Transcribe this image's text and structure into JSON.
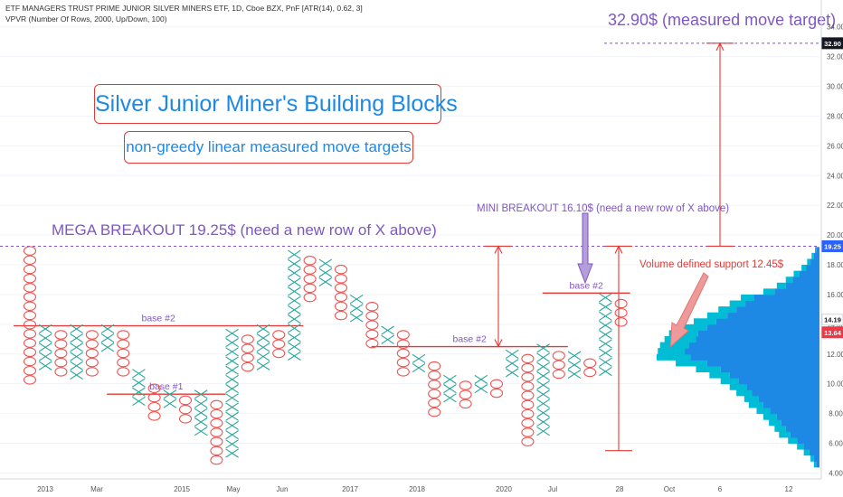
{
  "header": {
    "line1": "ETF MANAGERS TRUST PRIME JUNIOR SILVER MINERS ETF, 1D, Cboe BZX, PnF [ATR(14), 0.62, 3]",
    "line2": "VPVR (Number Of Rows, 2000, Up/Down, 100)"
  },
  "colors": {
    "x_mark": "#26a69a",
    "o_mark": "#ef5350",
    "annotation_line": "#e53935",
    "accent_text": "#1e88e5",
    "purple": "#7e57c2",
    "volume_up": "#00bcd4",
    "volume_down": "#1e88e5",
    "badge_dark": "#131722",
    "badge_blue": "#2962ff",
    "badge_red": "#f23645"
  },
  "annotations": {
    "title": "Silver Junior Miner's Building Blocks",
    "subtitle": "non-greedy linear measured move targets",
    "target_label": "32.90$ (measured move target)",
    "mega_breakout": "MEGA BREAKOUT 19.25$ (need a new row of X above)",
    "mini_breakout": "MINI BREAKOUT 16.10$ (need a new row of X above)",
    "volume_support": "Volume defined support 12.45$",
    "base2_left": "base #2",
    "base1": "base #1",
    "base2_mid": "base #2",
    "base2_right": "base #2"
  },
  "badges": [
    {
      "label": "32.90",
      "value": 32.9,
      "color": "#131722"
    },
    {
      "label": "19.25",
      "value": 19.25,
      "color": "#2962ff"
    },
    {
      "label": "14.19",
      "value": 14.19,
      "color": "#ffffff"
    },
    {
      "label": "13.64",
      "value": 13.64,
      "color": "#f23645"
    }
  ],
  "chart_data": {
    "type": "scatter",
    "subtype": "point-and-figure",
    "title": "",
    "xlabel": "",
    "ylabel": "",
    "ylim": [
      3.6,
      35.2
    ],
    "y_ticks": [
      4,
      6,
      8,
      10,
      12,
      14,
      16,
      18,
      20,
      22,
      24,
      26,
      28,
      30,
      32,
      34
    ],
    "y_tick_labels": [
      "4.00",
      "6.00",
      "8.00",
      "10.00",
      "12.00",
      "14.00",
      "16.00",
      "18.00",
      "20.00",
      "22.00",
      "24.00",
      "26.00",
      "28.00",
      "30.00",
      "32.00",
      "34.00"
    ],
    "x_tick_labels": [
      "2013",
      "Mar",
      "2015",
      "May",
      "Jun",
      "2017",
      "2018",
      "2020",
      "Jul",
      "28",
      "Oct",
      "6",
      "12"
    ],
    "box_size": 0.62,
    "columns": [
      {
        "type": "O",
        "high": 19.25,
        "low": 10.0
      },
      {
        "type": "X",
        "high": 14.0,
        "low": 11.0
      },
      {
        "type": "O",
        "high": 13.6,
        "low": 10.7
      },
      {
        "type": "X",
        "high": 14.0,
        "low": 10.4
      },
      {
        "type": "O",
        "high": 13.6,
        "low": 10.7
      },
      {
        "type": "X",
        "high": 14.0,
        "low": 12.4
      },
      {
        "type": "O",
        "high": 13.6,
        "low": 10.7
      },
      {
        "type": "X",
        "high": 11.0,
        "low": 8.8
      },
      {
        "type": "O",
        "high": 10.0,
        "low": 7.6
      },
      {
        "type": "X",
        "high": 9.6,
        "low": 8.2
      },
      {
        "type": "O",
        "high": 9.2,
        "low": 7.2
      },
      {
        "type": "X",
        "high": 9.6,
        "low": 6.7
      },
      {
        "type": "O",
        "high": 8.9,
        "low": 4.6
      },
      {
        "type": "X",
        "high": 13.7,
        "low": 5.0
      },
      {
        "type": "O",
        "high": 13.3,
        "low": 10.7
      },
      {
        "type": "X",
        "high": 14.0,
        "low": 11.0
      },
      {
        "type": "O",
        "high": 13.6,
        "low": 11.5
      },
      {
        "type": "X",
        "high": 19.0,
        "low": 11.8
      },
      {
        "type": "O",
        "high": 18.6,
        "low": 15.5
      },
      {
        "type": "X",
        "high": 18.4,
        "low": 16.7
      },
      {
        "type": "O",
        "high": 18.0,
        "low": 14.2
      },
      {
        "type": "X",
        "high": 16.0,
        "low": 14.2
      },
      {
        "type": "O",
        "high": 15.5,
        "low": 12.4
      },
      {
        "type": "X",
        "high": 13.9,
        "low": 12.4
      },
      {
        "type": "O",
        "high": 13.6,
        "low": 10.7
      },
      {
        "type": "X",
        "high": 12.0,
        "low": 10.7
      },
      {
        "type": "O",
        "high": 11.5,
        "low": 7.6
      },
      {
        "type": "X",
        "high": 10.6,
        "low": 8.5
      },
      {
        "type": "O",
        "high": 10.2,
        "low": 8.2
      },
      {
        "type": "X",
        "high": 10.6,
        "low": 9.6
      },
      {
        "type": "O",
        "high": 10.3,
        "low": 9.0
      },
      {
        "type": "X",
        "high": 12.3,
        "low": 10.3
      },
      {
        "type": "O",
        "high": 12.0,
        "low": 5.6
      },
      {
        "type": "X",
        "high": 12.7,
        "low": 6.7
      },
      {
        "type": "O",
        "high": 12.2,
        "low": 10.3
      },
      {
        "type": "X",
        "high": 12.2,
        "low": 10.6
      },
      {
        "type": "O",
        "high": 11.7,
        "low": 10.3
      },
      {
        "type": "X",
        "high": 16.1,
        "low": 10.6
      },
      {
        "type": "O",
        "high": 15.7,
        "low": 13.6
      }
    ],
    "levels": [
      {
        "name": "measured-move-target",
        "value": 32.9,
        "style": "dashed-purple"
      },
      {
        "name": "mega-breakout",
        "value": 19.25,
        "style": "dashed-purple"
      },
      {
        "name": "base-2-left",
        "value": 13.9,
        "style": "red",
        "from_col": 0,
        "to_col": 17
      },
      {
        "name": "base-1",
        "value": 9.3,
        "style": "red",
        "from_col": 6,
        "to_col": 12
      },
      {
        "name": "base-2-mid",
        "value": 12.5,
        "style": "red",
        "from_col": 23,
        "to_col": 34
      },
      {
        "name": "base-2-right",
        "value": 16.1,
        "style": "red",
        "from_col": 34,
        "to_col": 38
      }
    ],
    "volume_profile": {
      "row_size": 0.4,
      "rows": [
        {
          "price": 4.6,
          "up": 2,
          "down": 3
        },
        {
          "price": 5.0,
          "up": 3,
          "down": 5
        },
        {
          "price": 5.4,
          "up": 5,
          "down": 9
        },
        {
          "price": 5.8,
          "up": 6,
          "down": 14
        },
        {
          "price": 6.2,
          "up": 8,
          "down": 20
        },
        {
          "price": 6.6,
          "up": 10,
          "down": 26
        },
        {
          "price": 7.0,
          "up": 10,
          "down": 30
        },
        {
          "price": 7.4,
          "up": 11,
          "down": 34
        },
        {
          "price": 7.8,
          "up": 12,
          "down": 38
        },
        {
          "price": 8.2,
          "up": 12,
          "down": 44
        },
        {
          "price": 8.6,
          "up": 13,
          "down": 50
        },
        {
          "price": 9.0,
          "up": 13,
          "down": 54
        },
        {
          "price": 9.4,
          "up": 14,
          "down": 60
        },
        {
          "price": 9.8,
          "up": 15,
          "down": 65
        },
        {
          "price": 10.2,
          "up": 16,
          "down": 72
        },
        {
          "price": 10.6,
          "up": 18,
          "down": 80
        },
        {
          "price": 11.0,
          "up": 22,
          "down": 88
        },
        {
          "price": 11.4,
          "up": 28,
          "down": 100
        },
        {
          "price": 11.8,
          "up": 30,
          "down": 115
        },
        {
          "price": 12.2,
          "up": 24,
          "down": 120
        },
        {
          "price": 12.6,
          "up": 26,
          "down": 116
        },
        {
          "price": 13.0,
          "up": 28,
          "down": 110
        },
        {
          "price": 13.4,
          "up": 26,
          "down": 108
        },
        {
          "price": 13.8,
          "up": 22,
          "down": 100
        },
        {
          "price": 14.2,
          "up": 20,
          "down": 92
        },
        {
          "price": 14.6,
          "up": 18,
          "down": 82
        },
        {
          "price": 15.0,
          "up": 16,
          "down": 74
        },
        {
          "price": 15.4,
          "up": 14,
          "down": 66
        },
        {
          "price": 15.8,
          "up": 12,
          "down": 58
        },
        {
          "price": 16.2,
          "up": 10,
          "down": 40
        },
        {
          "price": 16.6,
          "up": 8,
          "down": 30
        },
        {
          "price": 17.0,
          "up": 6,
          "down": 24
        },
        {
          "price": 17.4,
          "up": 5,
          "down": 18
        },
        {
          "price": 17.8,
          "up": 4,
          "down": 12
        },
        {
          "price": 18.2,
          "up": 3,
          "down": 8
        },
        {
          "price": 18.6,
          "up": 2,
          "down": 5
        },
        {
          "price": 19.0,
          "up": 1,
          "down": 3
        }
      ]
    }
  }
}
